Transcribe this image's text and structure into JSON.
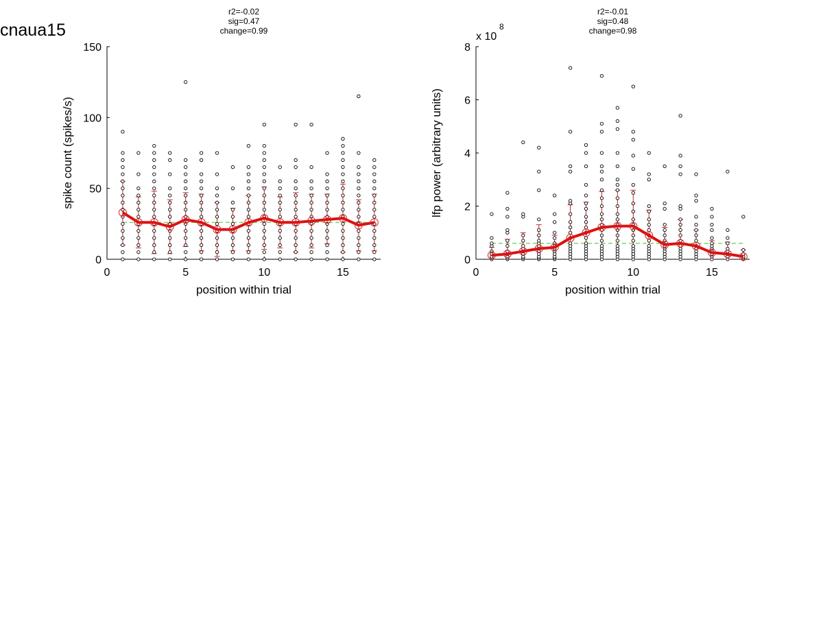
{
  "page": {
    "title": "cnaua15"
  },
  "chart_data": [
    {
      "type": "scatter",
      "stats": [
        "r2=-0.02",
        "sig=0.47",
        "change=0.99"
      ],
      "xlabel": "position within trial",
      "ylabel": "spike count (spikes/s)",
      "xlim": [
        0,
        17.4
      ],
      "ylim": [
        0,
        150
      ],
      "xticks": [
        "0",
        "5",
        "10",
        "15"
      ],
      "yticks": [
        "0",
        "50",
        "100",
        "150"
      ],
      "xtick_values": [
        0,
        5,
        10,
        15
      ],
      "ytick_values": [
        0,
        50,
        100,
        150
      ],
      "grid": false,
      "positions": [
        1,
        2,
        3,
        4,
        5,
        6,
        7,
        8,
        9,
        10,
        11,
        12,
        13,
        14,
        15,
        16,
        17
      ],
      "means": [
        33,
        26,
        26,
        23,
        28,
        26,
        21,
        21,
        26,
        29,
        26,
        26,
        27,
        28,
        29,
        24,
        26
      ],
      "sd_low": [
        10,
        8,
        4,
        4,
        9,
        6,
        2,
        6,
        6,
        7,
        8,
        5,
        8,
        11,
        5,
        6,
        6
      ],
      "sd_high": [
        55,
        44,
        48,
        42,
        47,
        46,
        40,
        36,
        45,
        51,
        44,
        47,
        46,
        46,
        53,
        42,
        46
      ],
      "overall_mean": 26,
      "points": [
        [
          0,
          5,
          10,
          15,
          20,
          25,
          30,
          35,
          40,
          45,
          50,
          55,
          60,
          65,
          70,
          75,
          90
        ],
        [
          0,
          5,
          10,
          15,
          20,
          25,
          30,
          35,
          40,
          45,
          50,
          60,
          75
        ],
        [
          0,
          5,
          10,
          15,
          20,
          25,
          30,
          35,
          40,
          45,
          50,
          55,
          60,
          65,
          70,
          75,
          80
        ],
        [
          0,
          5,
          10,
          15,
          20,
          25,
          30,
          35,
          40,
          45,
          50,
          60,
          70,
          75
        ],
        [
          0,
          5,
          10,
          15,
          20,
          25,
          30,
          35,
          40,
          45,
          50,
          55,
          60,
          65,
          70,
          125
        ],
        [
          0,
          5,
          10,
          15,
          20,
          25,
          30,
          35,
          40,
          45,
          50,
          55,
          60,
          70,
          75
        ],
        [
          0,
          5,
          10,
          15,
          20,
          25,
          30,
          35,
          40,
          45,
          50,
          60,
          75
        ],
        [
          0,
          5,
          10,
          15,
          20,
          25,
          30,
          35,
          40,
          50,
          65
        ],
        [
          0,
          5,
          10,
          15,
          20,
          25,
          30,
          35,
          40,
          45,
          50,
          55,
          60,
          65,
          80
        ],
        [
          0,
          5,
          10,
          15,
          20,
          25,
          30,
          35,
          40,
          45,
          50,
          55,
          60,
          65,
          70,
          75,
          80,
          95
        ],
        [
          0,
          5,
          10,
          15,
          20,
          25,
          30,
          35,
          40,
          45,
          50,
          55,
          65
        ],
        [
          0,
          5,
          10,
          15,
          20,
          25,
          30,
          35,
          40,
          45,
          50,
          55,
          65,
          70,
          95
        ],
        [
          0,
          5,
          10,
          15,
          20,
          25,
          30,
          35,
          40,
          45,
          50,
          55,
          65,
          95
        ],
        [
          0,
          5,
          10,
          15,
          20,
          25,
          30,
          35,
          40,
          45,
          50,
          55,
          60,
          75
        ],
        [
          0,
          5,
          10,
          15,
          20,
          25,
          30,
          35,
          40,
          45,
          50,
          55,
          60,
          65,
          70,
          75,
          80,
          85
        ],
        [
          0,
          5,
          10,
          15,
          20,
          25,
          30,
          35,
          40,
          45,
          50,
          55,
          60,
          65,
          75,
          115
        ],
        [
          0,
          5,
          10,
          15,
          20,
          25,
          30,
          35,
          40,
          45,
          50,
          55,
          60,
          65,
          70
        ]
      ]
    },
    {
      "type": "scatter",
      "stats": [
        "r2=-0.01",
        "sig=0.48",
        "change=0.98"
      ],
      "xlabel": "position within trial",
      "ylabel": "lfp power (arbitrary units)",
      "exponent_label": "x 10",
      "exponent": "8",
      "xlim": [
        0,
        17.4
      ],
      "ylim": [
        0,
        8
      ],
      "xticks": [
        "0",
        "5",
        "10",
        "15"
      ],
      "yticks": [
        "0",
        "2",
        "4",
        "6",
        "8"
      ],
      "xtick_values": [
        0,
        5,
        10,
        15
      ],
      "ytick_values": [
        0,
        2,
        4,
        6,
        8
      ],
      "grid": false,
      "positions": [
        1,
        2,
        3,
        4,
        5,
        6,
        7,
        8,
        9,
        10,
        11,
        12,
        13,
        14,
        15,
        16,
        17
      ],
      "means": [
        0.15,
        0.2,
        0.3,
        0.4,
        0.45,
        0.8,
        1.0,
        1.2,
        1.25,
        1.25,
        0.9,
        0.55,
        0.6,
        0.5,
        0.25,
        0.2,
        0.1
      ],
      "sd_low": [
        0.0,
        0.0,
        0.0,
        0.0,
        0.0,
        0.0,
        0.0,
        0.0,
        0.0,
        0.0,
        0.0,
        0.0,
        0.0,
        0.0,
        0.0,
        0.0,
        0.0
      ],
      "sd_high": [
        0.45,
        0.75,
        1.0,
        1.3,
        0.9,
        2.05,
        2.15,
        2.55,
        2.6,
        2.6,
        1.85,
        1.2,
        1.5,
        1.1,
        0.7,
        0.65,
        0.35
      ],
      "overall_mean": 0.6,
      "points": [
        [
          0.0,
          0.05,
          0.1,
          0.2,
          0.3,
          0.5,
          0.6,
          0.8,
          1.7
        ],
        [
          0.0,
          0.05,
          0.1,
          0.2,
          0.3,
          0.5,
          0.7,
          1.0,
          1.1,
          1.6,
          1.9,
          2.5
        ],
        [
          0.0,
          0.05,
          0.1,
          0.2,
          0.3,
          0.4,
          0.5,
          0.7,
          0.9,
          1.6,
          1.7,
          4.4
        ],
        [
          0.0,
          0.05,
          0.1,
          0.2,
          0.3,
          0.4,
          0.5,
          0.6,
          0.7,
          0.9,
          1.1,
          1.5,
          2.6,
          3.3,
          4.2
        ],
        [
          0.0,
          0.05,
          0.1,
          0.2,
          0.3,
          0.4,
          0.5,
          0.6,
          0.8,
          1.0,
          1.4,
          1.7,
          2.4
        ],
        [
          0.0,
          0.1,
          0.2,
          0.3,
          0.4,
          0.5,
          0.6,
          0.8,
          1.0,
          1.2,
          1.4,
          1.7,
          2.1,
          2.2,
          3.3,
          3.5,
          4.8,
          7.2
        ],
        [
          0.0,
          0.1,
          0.2,
          0.3,
          0.4,
          0.5,
          0.6,
          0.8,
          1.0,
          1.2,
          1.4,
          1.6,
          1.9,
          2.1,
          2.4,
          2.8,
          3.5,
          4.0,
          4.3
        ],
        [
          0.0,
          0.1,
          0.2,
          0.3,
          0.4,
          0.5,
          0.7,
          0.9,
          1.1,
          1.3,
          1.5,
          1.7,
          2.0,
          2.3,
          2.6,
          3.0,
          3.3,
          3.5,
          4.0,
          4.8,
          5.1,
          6.9
        ],
        [
          0.0,
          0.1,
          0.2,
          0.3,
          0.4,
          0.5,
          0.7,
          0.9,
          1.1,
          1.3,
          1.5,
          1.7,
          2.0,
          2.3,
          2.6,
          2.8,
          3.0,
          3.5,
          4.0,
          4.9,
          5.2,
          5.7
        ],
        [
          0.0,
          0.1,
          0.2,
          0.3,
          0.4,
          0.5,
          0.7,
          0.9,
          1.1,
          1.3,
          1.5,
          1.8,
          2.1,
          2.5,
          2.8,
          3.4,
          3.9,
          4.5,
          4.8,
          6.5
        ],
        [
          0.0,
          0.1,
          0.2,
          0.3,
          0.4,
          0.5,
          0.7,
          0.9,
          1.1,
          1.3,
          1.5,
          1.8,
          2.0,
          3.0,
          3.2,
          4.0
        ],
        [
          0.0,
          0.1,
          0.2,
          0.3,
          0.4,
          0.5,
          0.7,
          0.9,
          1.1,
          1.3,
          1.9,
          2.1,
          3.5
        ],
        [
          0.0,
          0.1,
          0.2,
          0.3,
          0.4,
          0.5,
          0.7,
          0.9,
          1.1,
          1.3,
          1.5,
          1.9,
          2.0,
          3.2,
          3.5,
          3.9,
          5.4
        ],
        [
          0.0,
          0.1,
          0.2,
          0.3,
          0.4,
          0.5,
          0.7,
          0.9,
          1.1,
          1.3,
          1.6,
          2.2,
          2.4,
          3.2
        ],
        [
          0.0,
          0.1,
          0.2,
          0.3,
          0.4,
          0.5,
          0.6,
          0.8,
          1.1,
          1.3,
          1.6,
          1.9
        ],
        [
          0.0,
          0.1,
          0.2,
          0.3,
          0.4,
          0.6,
          0.8,
          1.1,
          3.3
        ],
        [
          0.0,
          0.05,
          0.1,
          0.2,
          0.35,
          1.6
        ]
      ]
    }
  ]
}
